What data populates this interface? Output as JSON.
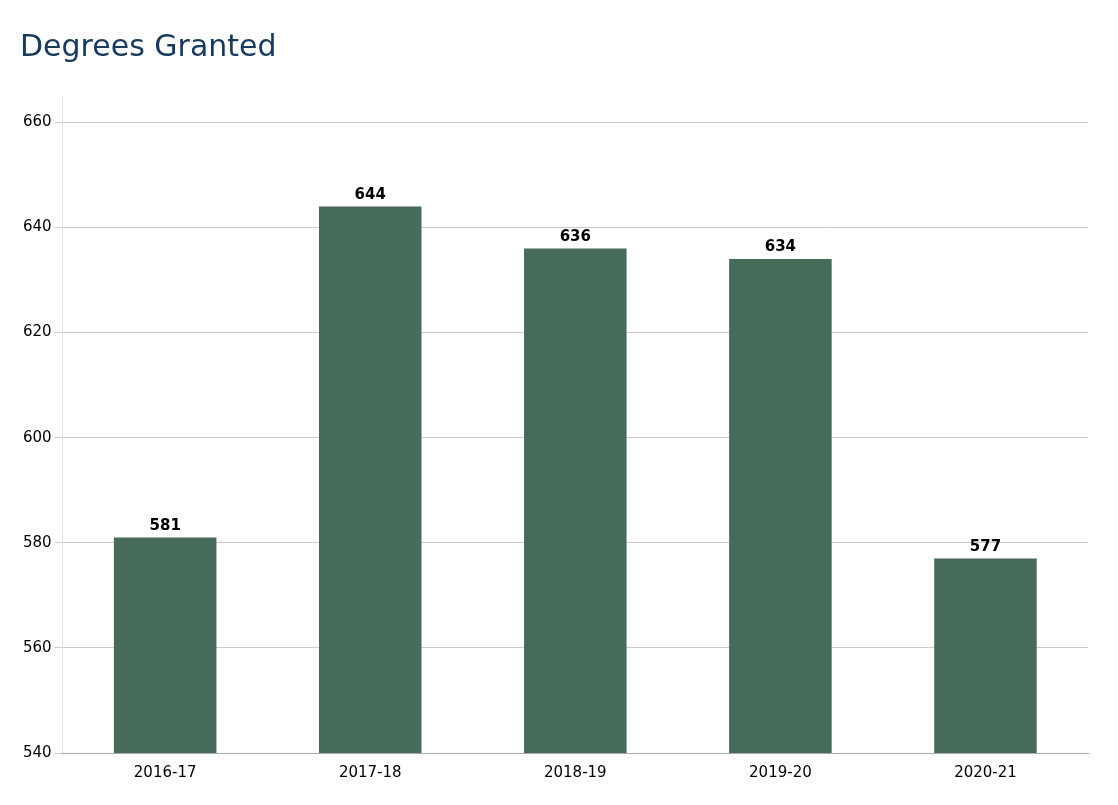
{
  "chart_data": {
    "type": "bar",
    "title": "Degrees Granted",
    "categories": [
      "2016-17",
      "2017-18",
      "2018-19",
      "2019-20",
      "2020-21"
    ],
    "values": [
      581,
      644,
      636,
      634,
      577
    ],
    "color": "#466b5a",
    "ylim": [
      540,
      665
    ],
    "yticks": [
      540,
      560,
      580,
      600,
      620,
      640,
      660
    ],
    "grid": true,
    "data_labels": true
  }
}
